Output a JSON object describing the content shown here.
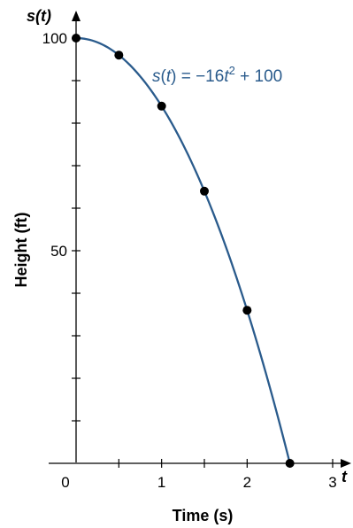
{
  "chart_data": {
    "type": "line",
    "title": "",
    "xlabel": "Time (s)",
    "ylabel": "Height (ft)",
    "x_axis_var": "t",
    "y_axis_var": "s(t)",
    "xlim": [
      0,
      3
    ],
    "ylim": [
      0,
      100
    ],
    "x_tick_labels": [
      "0",
      "1",
      "2",
      "3"
    ],
    "y_tick_labels": [
      "50",
      "100"
    ],
    "x_tick_values": [
      0.5,
      1,
      1.5,
      2,
      2.5,
      3
    ],
    "y_tick_values": [
      10,
      20,
      30,
      40,
      50,
      60,
      70,
      80,
      90,
      100
    ],
    "equation": {
      "parts": [
        "s",
        "(",
        "t",
        ") = −16",
        "t",
        "2",
        " + 100"
      ]
    },
    "curve_function": {
      "a": -16,
      "c": 100,
      "x_range": [
        0,
        2.5
      ]
    },
    "points": [
      {
        "x": 0,
        "y": 100
      },
      {
        "x": 0.5,
        "y": 96
      },
      {
        "x": 1,
        "y": 84
      },
      {
        "x": 1.5,
        "y": 64
      },
      {
        "x": 2,
        "y": 36
      },
      {
        "x": 2.5,
        "y": 0
      }
    ],
    "grid": false,
    "colors": {
      "curve": "#2a5b8c",
      "points": "#000000",
      "axes": "#000000"
    }
  }
}
